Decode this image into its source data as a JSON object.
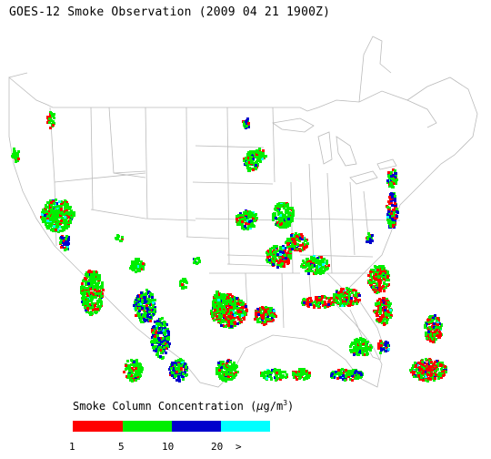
{
  "title": "GOES-12 Smoke Observation (2009 04 21  1900Z)",
  "legend": {
    "title_prefix": "Smoke Column Concentration (",
    "unit_mu": "μ",
    "unit_rest": "g/m",
    "unit_exp": "3",
    "title_suffix": ")",
    "bins": [
      {
        "label": "1",
        "color": "#ff0000"
      },
      {
        "label": "5",
        "color": "#00ee00"
      },
      {
        "label": "10",
        "color": "#0000cc"
      },
      {
        "label": "20",
        "color": "#00ffff"
      }
    ],
    "overflow_label": ">"
  },
  "colors": {
    "boundary": "#bbbbbb",
    "low": "#ff0000",
    "mid": "#00ee00",
    "high": "#0000cc",
    "very_high": "#00ffff"
  }
}
